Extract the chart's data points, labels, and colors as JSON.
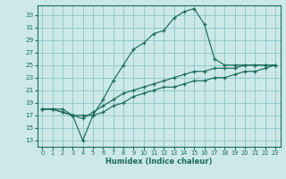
{
  "xlabel": "Humidex (Indice chaleur)",
  "bg_color": "#cce8e8",
  "grid_color": "#7dbfbf",
  "line_color": "#1a6b5a",
  "xlim": [
    -0.5,
    23.5
  ],
  "ylim": [
    12,
    34.5
  ],
  "xticks": [
    0,
    1,
    2,
    3,
    4,
    5,
    6,
    7,
    8,
    9,
    10,
    11,
    12,
    13,
    14,
    15,
    16,
    17,
    18,
    19,
    20,
    21,
    22,
    23
  ],
  "yticks": [
    13,
    15,
    17,
    19,
    21,
    23,
    25,
    27,
    29,
    31,
    33
  ],
  "line1_x": [
    0,
    1,
    2,
    3,
    4,
    5,
    6,
    7,
    8,
    9,
    10,
    11,
    12,
    13,
    14,
    15,
    16,
    17,
    18,
    19,
    20,
    21,
    22,
    23
  ],
  "line1_y": [
    18.0,
    18.0,
    18.0,
    17.0,
    13.0,
    17.0,
    19.5,
    22.5,
    25.0,
    27.5,
    28.5,
    30.0,
    30.5,
    32.5,
    33.5,
    34.0,
    31.5,
    26.0,
    25.0,
    25.0,
    25.0,
    25.0,
    25.0,
    25.0
  ],
  "line2_x": [
    0,
    1,
    2,
    3,
    4,
    5,
    6,
    7,
    8,
    9,
    10,
    11,
    12,
    13,
    14,
    15,
    16,
    17,
    18,
    19,
    20,
    21,
    22,
    23
  ],
  "line2_y": [
    18.0,
    18.0,
    17.5,
    17.0,
    16.5,
    17.5,
    18.5,
    19.5,
    20.5,
    21.0,
    21.5,
    22.0,
    22.5,
    23.0,
    23.5,
    24.0,
    24.0,
    24.5,
    24.5,
    24.5,
    25.0,
    25.0,
    25.0,
    25.0
  ],
  "line3_x": [
    0,
    1,
    2,
    3,
    4,
    5,
    6,
    7,
    8,
    9,
    10,
    11,
    12,
    13,
    14,
    15,
    16,
    17,
    18,
    19,
    20,
    21,
    22,
    23
  ],
  "line3_y": [
    18.0,
    18.0,
    17.5,
    17.0,
    17.0,
    17.0,
    17.5,
    18.5,
    19.0,
    20.0,
    20.5,
    21.0,
    21.5,
    21.5,
    22.0,
    22.5,
    22.5,
    23.0,
    23.0,
    23.5,
    24.0,
    24.0,
    24.5,
    25.0
  ]
}
